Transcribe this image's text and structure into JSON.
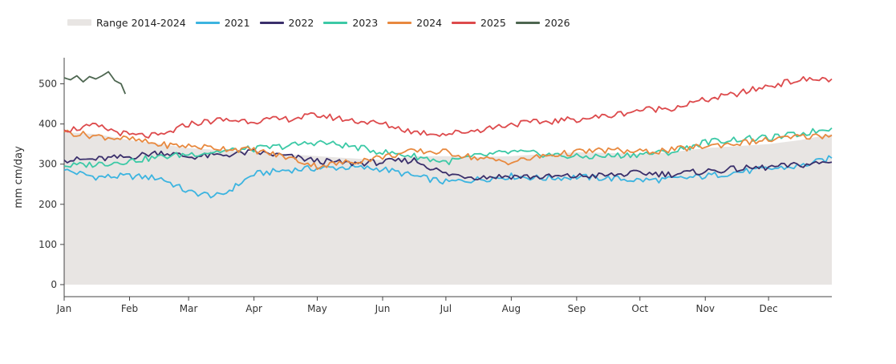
{
  "chart_data": {
    "type": "line",
    "xlabel": "",
    "ylabel": "mm cm/day",
    "ylim": [
      -30,
      565
    ],
    "x_ticks": [
      "Jan",
      "Feb",
      "Mar",
      "Apr",
      "May",
      "Jun",
      "Jul",
      "Aug",
      "Sep",
      "Oct",
      "Nov",
      "Dec"
    ],
    "y_ticks": [
      0,
      100,
      200,
      300,
      400,
      500
    ],
    "legend_position": "top-left",
    "grid": false,
    "range_band": {
      "name": "Range 2014-2024",
      "color": "#e8e5e3",
      "x": [
        "Jan 1",
        "Jan 16",
        "Feb 1",
        "Feb 16",
        "Mar 1",
        "Mar 16",
        "Apr 1",
        "Apr 16",
        "May 1",
        "May 16",
        "Jun 1",
        "Jun 16",
        "Jul 1",
        "Jul 16",
        "Aug 1",
        "Aug 16",
        "Sep 1",
        "Sep 16",
        "Oct 1",
        "Oct 16",
        "Nov 1",
        "Nov 16",
        "Dec 1",
        "Dec 16",
        "Dec 31"
      ],
      "lower": [
        0,
        0,
        0,
        0,
        0,
        0,
        0,
        0,
        0,
        0,
        0,
        0,
        0,
        0,
        0,
        0,
        0,
        0,
        0,
        0,
        0,
        0,
        0,
        0,
        0
      ],
      "upper": [
        380,
        375,
        360,
        350,
        340,
        335,
        330,
        325,
        320,
        315,
        310,
        320,
        320,
        318,
        320,
        325,
        330,
        328,
        325,
        330,
        340,
        345,
        350,
        360,
        375
      ]
    },
    "series": [
      {
        "name": "2021",
        "color": "#3cb4e0",
        "x": [
          "Jan 1",
          "Jan 16",
          "Feb 1",
          "Feb 16",
          "Mar 1",
          "Mar 16",
          "Apr 1",
          "Apr 16",
          "May 1",
          "May 16",
          "Jun 1",
          "Jun 16",
          "Jul 1",
          "Jul 16",
          "Aug 1",
          "Aug 16",
          "Sep 1",
          "Sep 16",
          "Oct 1",
          "Oct 16",
          "Nov 1",
          "Nov 16",
          "Dec 1",
          "Dec 16",
          "Dec 31"
        ],
        "values": [
          285,
          268,
          270,
          265,
          230,
          220,
          275,
          285,
          290,
          292,
          288,
          270,
          255,
          262,
          270,
          265,
          268,
          265,
          260,
          262,
          270,
          280,
          288,
          295,
          315
        ]
      },
      {
        "name": "2022",
        "color": "#3a2f6b",
        "x": [
          "Jan 1",
          "Jan 16",
          "Feb 1",
          "Feb 16",
          "Mar 1",
          "Mar 16",
          "Apr 1",
          "Apr 16",
          "May 1",
          "May 16",
          "Jun 1",
          "Jun 16",
          "Jul 1",
          "Jul 16",
          "Aug 1",
          "Aug 16",
          "Sep 1",
          "Sep 16",
          "Oct 1",
          "Oct 16",
          "Nov 1",
          "Nov 16",
          "Dec 1",
          "Dec 16",
          "Dec 31"
        ],
        "values": [
          310,
          312,
          318,
          330,
          318,
          322,
          330,
          320,
          308,
          302,
          305,
          310,
          275,
          268,
          270,
          268,
          270,
          272,
          278,
          275,
          282,
          288,
          292,
          298,
          305
        ]
      },
      {
        "name": "2023",
        "color": "#3cc9a6",
        "x": [
          "Jan 1",
          "Jan 16",
          "Feb 1",
          "Feb 16",
          "Mar 1",
          "Mar 16",
          "Apr 1",
          "Apr 16",
          "May 1",
          "May 16",
          "Jun 1",
          "Jun 16",
          "Jul 1",
          "Jul 16",
          "Aug 1",
          "Aug 16",
          "Sep 1",
          "Sep 16",
          "Oct 1",
          "Oct 16",
          "Nov 1",
          "Nov 16",
          "Dec 1",
          "Dec 16",
          "Dec 31"
        ],
        "values": [
          295,
          300,
          308,
          318,
          325,
          332,
          338,
          345,
          355,
          345,
          330,
          320,
          305,
          320,
          330,
          325,
          318,
          320,
          325,
          330,
          355,
          362,
          365,
          375,
          390
        ]
      },
      {
        "name": "2024",
        "color": "#e8893f",
        "x": [
          "Jan 1",
          "Jan 16",
          "Feb 1",
          "Feb 16",
          "Mar 1",
          "Mar 16",
          "Apr 1",
          "Apr 16",
          "May 1",
          "May 16",
          "Jun 1",
          "Jun 16",
          "Jul 1",
          "Jul 16",
          "Aug 1",
          "Aug 16",
          "Sep 1",
          "Sep 16",
          "Oct 1",
          "Oct 16",
          "Nov 1",
          "Nov 16",
          "Dec 1",
          "Dec 16",
          "Dec 31"
        ],
        "values": [
          380,
          370,
          362,
          348,
          345,
          340,
          335,
          318,
          295,
          305,
          318,
          332,
          330,
          315,
          305,
          320,
          330,
          335,
          330,
          335,
          345,
          352,
          360,
          368,
          372
        ]
      },
      {
        "name": "2025",
        "color": "#dd4a4c",
        "x": [
          "Jan 1",
          "Jan 16",
          "Feb 1",
          "Feb 16",
          "Mar 1",
          "Mar 16",
          "Apr 1",
          "Apr 16",
          "May 1",
          "May 16",
          "Jun 1",
          "Jun 16",
          "Jul 1",
          "Jul 16",
          "Aug 1",
          "Aug 16",
          "Sep 1",
          "Sep 16",
          "Oct 1",
          "Oct 16",
          "Nov 1",
          "Nov 16",
          "Dec 1",
          "Dec 16",
          "Dec 31"
        ],
        "values": [
          385,
          395,
          372,
          370,
          400,
          410,
          408,
          412,
          422,
          410,
          400,
          380,
          375,
          385,
          400,
          405,
          412,
          420,
          435,
          440,
          460,
          475,
          495,
          510,
          512
        ]
      },
      {
        "name": "2026",
        "color": "#4d6650",
        "x": [
          "Jan 1",
          "Jan 4",
          "Jan 7",
          "Jan 10",
          "Jan 13",
          "Jan 16",
          "Jan 19",
          "Jan 22",
          "Jan 25",
          "Jan 28",
          "Jan 30"
        ],
        "values": [
          515,
          510,
          520,
          505,
          518,
          512,
          520,
          530,
          508,
          500,
          475
        ]
      }
    ]
  }
}
